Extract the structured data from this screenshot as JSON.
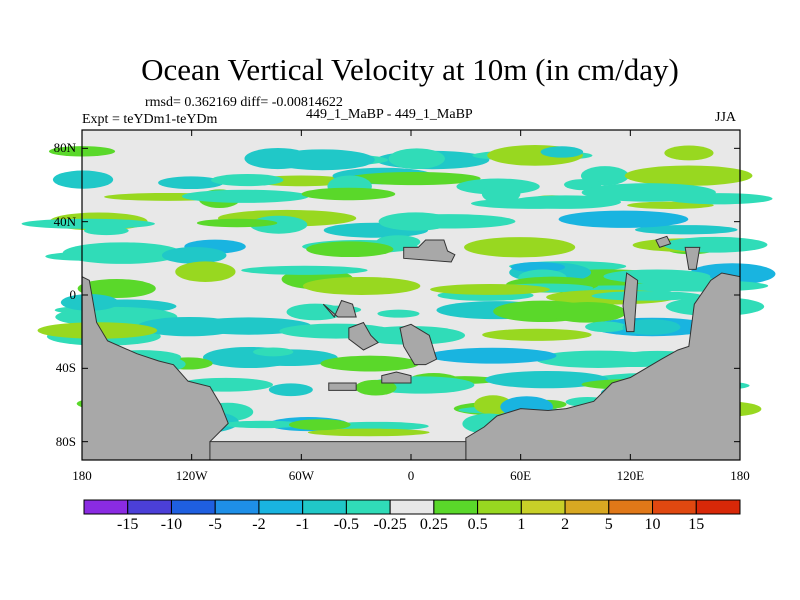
{
  "header": {
    "title": "Ocean Vertical Velocity at 10m (in cm/day)",
    "stats": "rmsd= 0.362169 diff= -0.00814622",
    "expt": "Expt = teYDm1-teYDm",
    "case": "449_1_MaBP - 449_1_MaBP",
    "season": "JJA"
  },
  "chart_data": {
    "type": "heatmap",
    "title": "Ocean Vertical Velocity at 10m (in cm/day)",
    "xlabel": "",
    "ylabel": "",
    "x_ticks": [
      "180",
      "120W",
      "60W",
      "0",
      "60E",
      "120E",
      "180"
    ],
    "y_ticks": [
      "80N",
      "40N",
      "0",
      "40S",
      "80S"
    ],
    "xlim": [
      -180,
      180
    ],
    "ylim": [
      -90,
      90
    ],
    "colorbar": {
      "levels": [
        "-15",
        "-10",
        "-5",
        "-2",
        "-1",
        "-0.5",
        "-0.25",
        "0.25",
        "0.5",
        "1",
        "2",
        "5",
        "10",
        "15"
      ],
      "colors": [
        "#8a2be2",
        "#4b3fd8",
        "#1f5fe0",
        "#1e8fe8",
        "#19b4e0",
        "#20c8c8",
        "#30dcb8",
        "#e8e8e8",
        "#5ad82a",
        "#98d820",
        "#c8d028",
        "#d8a822",
        "#e07818",
        "#e04810",
        "#d82808"
      ]
    },
    "land_color": "#a8a8a8",
    "background_color": "#e8e8e8"
  }
}
